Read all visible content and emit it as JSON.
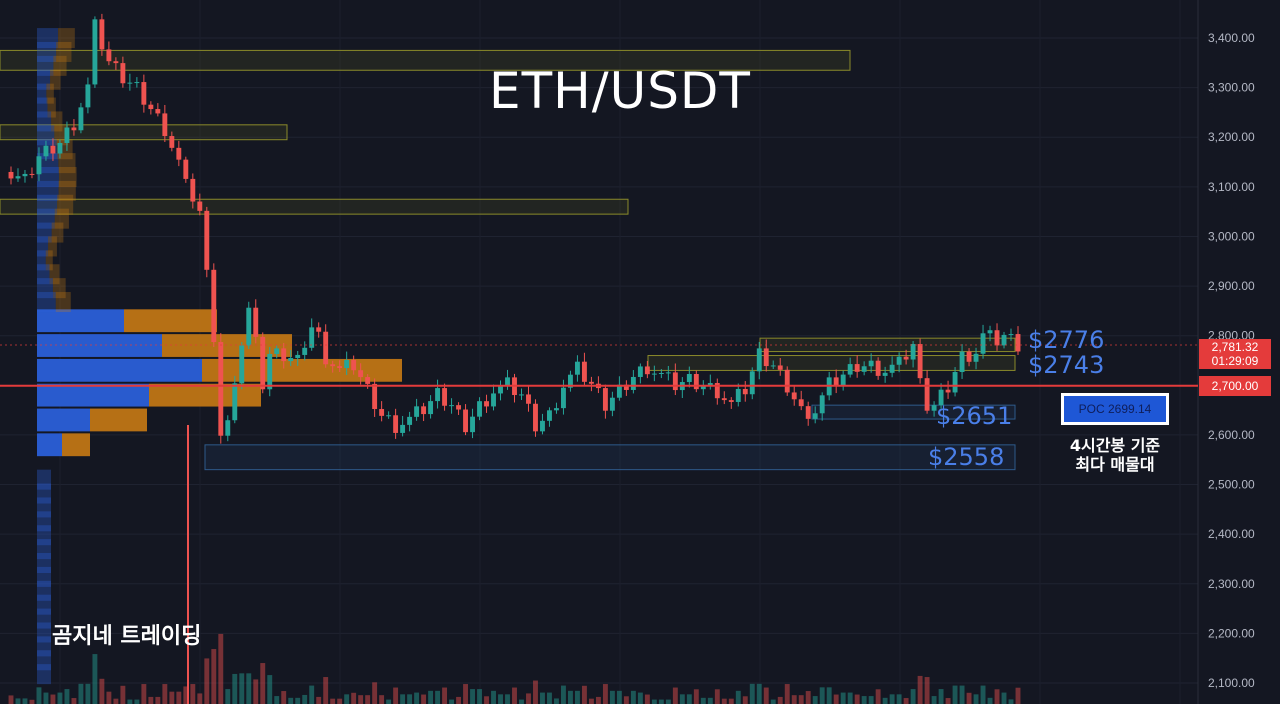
{
  "title": "ETH/USDT",
  "watermark": "곰지네 트레이딩",
  "colors": {
    "background": "#141722",
    "up": "#26a69a",
    "down": "#ef5350",
    "poc_line": "#e43b3b",
    "level_label": "#4a7fe8",
    "vp_blue": "#2a5fd8",
    "vp_orange": "#c87a14",
    "zone_yellow": "#8a8a2a",
    "zone_blue": "#2a4e7a"
  },
  "current_price": {
    "value": "2,781.32",
    "countdown": "01:29:09"
  },
  "poc_tag": "2,700.00",
  "poc": {
    "label": "POC  2699.14",
    "note_line1": "4시간봉 기준",
    "note_line2": "최다 매물대"
  },
  "levels": [
    {
      "text": "$2776",
      "price": 2776
    },
    {
      "text": "$2743",
      "price": 2743
    },
    {
      "text": "$2651",
      "price": 2651
    },
    {
      "text": "$2558",
      "price": 2558
    }
  ],
  "chart_data": {
    "type": "candlestick",
    "symbol": "ETH/USDT",
    "ylim": [
      2080,
      3460
    ],
    "y_ticks": [
      "3,400.00",
      "3,300.00",
      "3,200.00",
      "3,100.00",
      "3,000.00",
      "2,900.00",
      "2,800.00",
      "2,700.00",
      "2,600.00",
      "2,500.00",
      "2,400.00",
      "2,300.00",
      "2,200.00",
      "2,100.00"
    ],
    "y_tick_values": [
      3400,
      3300,
      3200,
      3100,
      3000,
      2900,
      2800,
      2700,
      2600,
      2500,
      2400,
      2300,
      2200,
      2100
    ],
    "poc_price": 2699.14,
    "close_path": [
      [
        0,
        3130
      ],
      [
        3,
        3110
      ],
      [
        5,
        3160
      ],
      [
        8,
        3190
      ],
      [
        10,
        3230
      ],
      [
        12,
        3300
      ],
      [
        13,
        3420
      ],
      [
        15,
        3350
      ],
      [
        17,
        3320
      ],
      [
        19,
        3300
      ],
      [
        21,
        3260
      ],
      [
        23,
        3220
      ],
      [
        25,
        3150
      ],
      [
        26,
        3100
      ],
      [
        27,
        3080
      ],
      [
        28,
        3050
      ],
      [
        29,
        2920
      ],
      [
        30,
        2800
      ],
      [
        31,
        2600
      ],
      [
        32,
        2620
      ],
      [
        33,
        2720
      ],
      [
        35,
        2850
      ],
      [
        36,
        2780
      ],
      [
        37,
        2700
      ],
      [
        38,
        2760
      ],
      [
        40,
        2760
      ],
      [
        42,
        2750
      ],
      [
        43,
        2790
      ],
      [
        44,
        2820
      ],
      [
        45,
        2800
      ],
      [
        46,
        2760
      ],
      [
        48,
        2730
      ],
      [
        50,
        2740
      ],
      [
        52,
        2690
      ],
      [
        54,
        2640
      ],
      [
        56,
        2620
      ],
      [
        58,
        2630
      ],
      [
        60,
        2650
      ],
      [
        62,
        2680
      ],
      [
        64,
        2660
      ],
      [
        66,
        2620
      ],
      [
        68,
        2660
      ],
      [
        70,
        2690
      ],
      [
        72,
        2700
      ],
      [
        74,
        2680
      ],
      [
        76,
        2620
      ],
      [
        78,
        2640
      ],
      [
        80,
        2700
      ],
      [
        82,
        2730
      ],
      [
        84,
        2700
      ],
      [
        86,
        2660
      ],
      [
        88,
        2690
      ],
      [
        90,
        2720
      ],
      [
        92,
        2740
      ],
      [
        94,
        2720
      ],
      [
        96,
        2700
      ],
      [
        98,
        2710
      ],
      [
        100,
        2700
      ],
      [
        102,
        2690
      ],
      [
        104,
        2660
      ],
      [
        106,
        2690
      ],
      [
        108,
        2760
      ],
      [
        110,
        2740
      ],
      [
        112,
        2700
      ],
      [
        114,
        2650
      ],
      [
        116,
        2650
      ],
      [
        118,
        2700
      ],
      [
        120,
        2720
      ],
      [
        122,
        2740
      ],
      [
        124,
        2740
      ],
      [
        126,
        2730
      ],
      [
        128,
        2740
      ],
      [
        130,
        2780
      ],
      [
        131,
        2700
      ],
      [
        132,
        2660
      ],
      [
        133,
        2660
      ],
      [
        135,
        2700
      ],
      [
        137,
        2760
      ],
      [
        139,
        2770
      ],
      [
        140,
        2800
      ],
      [
        142,
        2790
      ],
      [
        143,
        2800
      ],
      [
        145,
        2781
      ]
    ],
    "volume_profile": [
      {
        "price": 2810,
        "blue": 87,
        "orange": 93
      },
      {
        "price": 2760,
        "blue": 125,
        "orange": 130
      },
      {
        "price": 2710,
        "blue": 165,
        "orange": 200
      },
      {
        "price": 2660,
        "blue": 112,
        "orange": 112
      },
      {
        "price": 2610,
        "blue": 53,
        "orange": 57
      },
      {
        "price": 2560,
        "blue": 25,
        "orange": 28
      }
    ],
    "zones": [
      {
        "kind": "yellow",
        "top": 3375,
        "bottom": 3335,
        "x0": 0,
        "x1": 850
      },
      {
        "kind": "yellow",
        "top": 3225,
        "bottom": 3195,
        "x0": 0,
        "x1": 287
      },
      {
        "kind": "yellow",
        "top": 3075,
        "bottom": 3045,
        "x0": 0,
        "x1": 628
      },
      {
        "kind": "yellow",
        "top": 2795,
        "bottom": 2768,
        "x0": 760,
        "x1": 1015
      },
      {
        "kind": "yellow",
        "top": 2760,
        "bottom": 2730,
        "x0": 648,
        "x1": 1015
      },
      {
        "kind": "blue",
        "top": 2660,
        "bottom": 2632,
        "x0": 812,
        "x1": 1015
      },
      {
        "kind": "blue",
        "top": 2580,
        "bottom": 2530,
        "x0": 205,
        "x1": 1015
      }
    ]
  }
}
